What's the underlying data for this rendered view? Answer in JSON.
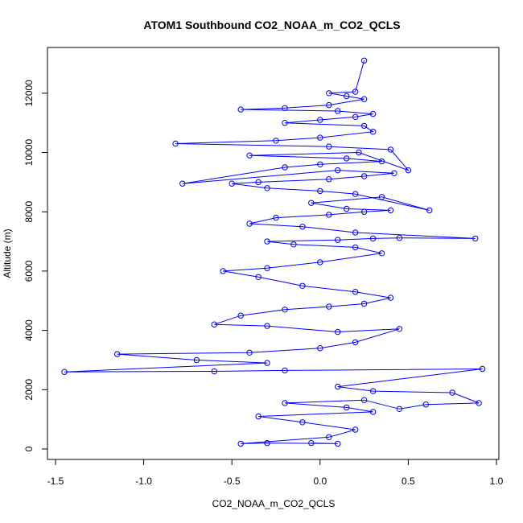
{
  "chart_data": {
    "type": "scatter",
    "title": "ATOM1 Southbound CO2_NOAA_m_CO2_QCLS",
    "xlabel": "CO2_NOAA_m_CO2_QCLS",
    "ylabel": "Altitude (m)",
    "xlim": [
      -1.5,
      1.0
    ],
    "ylim": [
      0,
      13000
    ],
    "xticks": [
      "-1.5",
      "-1.0",
      "-0.5",
      "0.0",
      "0.5",
      "1.0"
    ],
    "yticks": [
      "0",
      "2000",
      "4000",
      "6000",
      "8000",
      "10000",
      "12000"
    ],
    "grid": false,
    "legend": "none",
    "color": "#0000ff",
    "marker": "open-circle",
    "connected": true,
    "series": [
      {
        "x": [
          -0.05,
          0.1,
          -0.3,
          -0.45,
          0.05,
          0.2,
          -0.1,
          -0.35,
          0.3,
          0.15,
          -0.2,
          0.25,
          0.45,
          0.6,
          0.9,
          0.75,
          0.3,
          0.1,
          0.92,
          -0.2,
          -0.6,
          -1.45,
          -0.3,
          -0.7,
          -1.15,
          -0.4,
          0.0,
          0.2,
          0.45,
          0.1,
          -0.3,
          -0.6,
          -0.45,
          -0.2,
          0.05,
          0.25,
          0.4,
          0.2,
          -0.1,
          -0.35,
          -0.55,
          -0.3,
          0.0,
          0.35,
          0.2,
          -0.15,
          -0.3,
          0.1,
          0.3,
          0.45,
          0.88,
          0.2,
          -0.1,
          -0.4,
          -0.25,
          0.05,
          0.25,
          0.4,
          0.15,
          -0.05,
          0.35,
          0.62,
          0.2,
          0.0,
          -0.3,
          -0.5,
          -0.35,
          0.05,
          0.25,
          0.42,
          0.1,
          -0.78,
          -0.2,
          0.0,
          0.35,
          0.15,
          -0.4,
          0.22,
          0.5,
          0.4,
          0.05,
          -0.82,
          -0.25,
          0.0,
          0.3,
          0.25,
          -0.2,
          0.0,
          0.2,
          0.3,
          0.1,
          -0.45,
          -0.2,
          0.05,
          0.25,
          0.15,
          0.05,
          0.2,
          0.25
        ],
        "y": [
          200,
          180,
          200,
          180,
          400,
          650,
          900,
          1100,
          1250,
          1400,
          1550,
          1650,
          1350,
          1500,
          1550,
          1900,
          1950,
          2100,
          2700,
          2650,
          2620,
          2600,
          2900,
          3000,
          3200,
          3250,
          3400,
          3600,
          4050,
          3950,
          4150,
          4200,
          4500,
          4700,
          4800,
          4900,
          5100,
          5300,
          5500,
          5800,
          6000,
          6100,
          6300,
          6600,
          6800,
          6900,
          7000,
          7050,
          7100,
          7120,
          7100,
          7300,
          7500,
          7600,
          7800,
          7900,
          8000,
          8050,
          8100,
          8300,
          8500,
          8050,
          8600,
          8700,
          8800,
          8950,
          9000,
          9100,
          9200,
          9300,
          9400,
          8950,
          9500,
          9600,
          9700,
          9800,
          9900,
          10000,
          9400,
          10100,
          10200,
          10300,
          10400,
          10500,
          10700,
          10900,
          11000,
          11100,
          11200,
          11300,
          11400,
          11450,
          11500,
          11600,
          11800,
          11900,
          12000,
          12050,
          13100
        ]
      }
    ]
  }
}
